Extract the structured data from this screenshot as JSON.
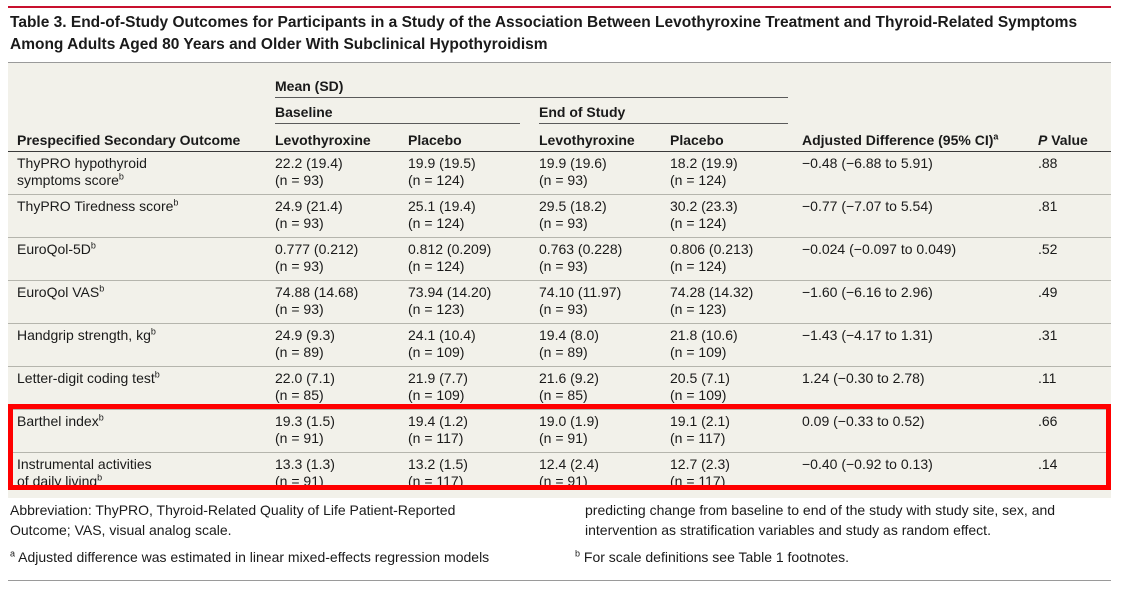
{
  "title_line1": "Table 3. End-of-Study Outcomes for Participants in a Study of the Association Between Levothyroxine Treatment and Thyroid-Related Symptoms",
  "title_line2": "Among Adults Aged 80 Years and Older With Subclinical Hypothyroidism",
  "header": {
    "mean_sd": "Mean (SD)",
    "baseline": "Baseline",
    "end_of_study": "End of Study",
    "outcome": "Prespecified Secondary Outcome",
    "levo": "Levothyroxine",
    "placebo": "Placebo",
    "adj_diff": "Adjusted Difference (95% CI)",
    "adj_diff_sup": "a",
    "p": "P",
    "p_value": " Value"
  },
  "rows": [
    {
      "outcome1": "ThyPRO hypothyroid",
      "outcome2": "symptoms score",
      "sup": "b",
      "bl_levo": "22.2 (19.4)",
      "bl_levo_n": "(n = 93)",
      "bl_plac": "19.9 (19.5)",
      "bl_plac_n": "(n = 124)",
      "es_levo": "19.9 (19.6)",
      "es_levo_n": "(n = 93)",
      "es_plac": "18.2 (19.9)",
      "es_plac_n": "(n = 124)",
      "diff": "−0.48 (−6.88 to 5.91)",
      "p": ".88"
    },
    {
      "outcome1": "ThyPRO Tiredness score",
      "outcome2": "",
      "sup": "b",
      "bl_levo": "24.9 (21.4)",
      "bl_levo_n": "(n = 93)",
      "bl_plac": "25.1 (19.4)",
      "bl_plac_n": "(n = 124)",
      "es_levo": "29.5 (18.2)",
      "es_levo_n": "(n = 93)",
      "es_plac": "30.2 (23.3)",
      "es_plac_n": "(n = 124)",
      "diff": "−0.77 (−7.07 to 5.54)",
      "p": ".81"
    },
    {
      "outcome1": "EuroQol-5D",
      "outcome2": "",
      "sup": "b",
      "bl_levo": "0.777 (0.212)",
      "bl_levo_n": "(n = 93)",
      "bl_plac": "0.812 (0.209)",
      "bl_plac_n": "(n = 124)",
      "es_levo": "0.763 (0.228)",
      "es_levo_n": "(n = 93)",
      "es_plac": "0.806 (0.213)",
      "es_plac_n": "(n = 124)",
      "diff": "−0.024 (−0.097 to 0.049)",
      "p": ".52"
    },
    {
      "outcome1": "EuroQol VAS",
      "outcome2": "",
      "sup": "b",
      "bl_levo": "74.88 (14.68)",
      "bl_levo_n": "(n = 93)",
      "bl_plac": "73.94 (14.20)",
      "bl_plac_n": "(n = 123)",
      "es_levo": "74.10 (11.97)",
      "es_levo_n": "(n = 93)",
      "es_plac": "74.28 (14.32)",
      "es_plac_n": "(n = 123)",
      "diff": "−1.60 (−6.16 to 2.96)",
      "p": ".49"
    },
    {
      "outcome1": "Handgrip strength, kg",
      "outcome2": "",
      "sup": "b",
      "bl_levo": "24.9 (9.3)",
      "bl_levo_n": "(n = 89)",
      "bl_plac": "24.1 (10.4)",
      "bl_plac_n": "(n = 109)",
      "es_levo": "19.4 (8.0)",
      "es_levo_n": "(n = 89)",
      "es_plac": "21.8 (10.6)",
      "es_plac_n": "(n = 109)",
      "diff": "−1.43 (−4.17 to 1.31)",
      "p": ".31"
    },
    {
      "outcome1": "Letter-digit coding test",
      "outcome2": "",
      "sup": "b",
      "bl_levo": "22.0 (7.1)",
      "bl_levo_n": "(n = 85)",
      "bl_plac": "21.9 (7.7)",
      "bl_plac_n": "(n = 109)",
      "es_levo": "21.6 (9.2)",
      "es_levo_n": "(n = 85)",
      "es_plac": "20.5 (7.1)",
      "es_plac_n": "(n = 109)",
      "diff": "1.24 (−0.30 to 2.78)",
      "p": ".11"
    },
    {
      "outcome1": "Barthel index",
      "outcome2": "",
      "sup": "b",
      "bl_levo": "19.3 (1.5)",
      "bl_levo_n": "(n = 91)",
      "bl_plac": "19.4 (1.2)",
      "bl_plac_n": "(n = 117)",
      "es_levo": "19.0 (1.9)",
      "es_levo_n": "(n = 91)",
      "es_plac": "19.1 (2.1)",
      "es_plac_n": "(n = 117)",
      "diff": "0.09 (−0.33 to 0.52)",
      "p": ".66"
    },
    {
      "outcome1": "Instrumental activities",
      "outcome2": "of daily living",
      "sup": "b",
      "bl_levo": "13.3 (1.3)",
      "bl_levo_n": "(n = 91)",
      "bl_plac": "13.2 (1.5)",
      "bl_plac_n": "(n = 117)",
      "es_levo": "12.4 (2.4)",
      "es_levo_n": "(n = 91)",
      "es_plac": "12.7 (2.3)",
      "es_plac_n": "(n = 117)",
      "diff": "−0.40 (−0.92 to 0.13)",
      "p": ".14"
    }
  ],
  "footnotes": {
    "abbrev_line1": "Abbreviation: ThyPRO, Thyroid-Related Quality of Life Patient-Reported",
    "abbrev_line2": "Outcome; VAS, visual analog scale.",
    "a_sup": "a",
    "a_text": " Adjusted difference was estimated in linear mixed-effects regression models",
    "right_line1": "predicting change from baseline to end of the study with study site, sex, and",
    "right_line2": "intervention as stratification variables and study as random effect.",
    "b_sup": "b",
    "b_text": " For scale definitions see Table 1 footnotes."
  },
  "colors": {
    "title_rule": "#c8102e",
    "panel_bg": "#f2f1ea",
    "highlight_box": "#ff0000"
  }
}
